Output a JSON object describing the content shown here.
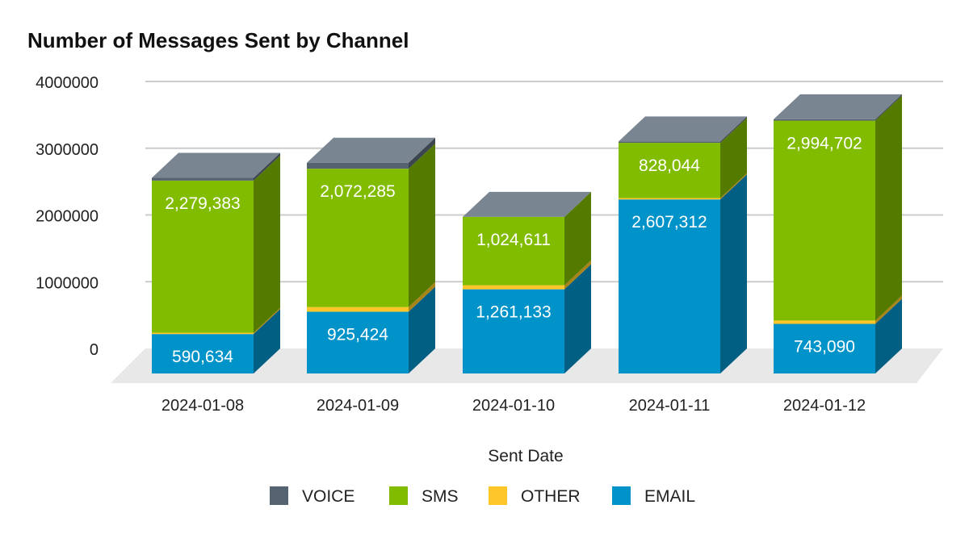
{
  "chart_data": {
    "type": "bar",
    "stacked": true,
    "three_d": true,
    "title": "Number of Messages Sent by Channel",
    "xlabel": "Sent Date",
    "ylabel": "",
    "ylim": [
      0,
      4000000
    ],
    "yticks": [
      "0",
      "1000000",
      "2000000",
      "3000000",
      "4000000"
    ],
    "grid": true,
    "legend_position": "bottom",
    "categories": [
      "2024-01-08",
      "2024-01-09",
      "2024-01-10",
      "2024-01-11",
      "2024-01-12"
    ],
    "series": [
      {
        "name": "EMAIL",
        "color": "#0093C9",
        "side_color": "#005F82",
        "values": [
          590634,
          925424,
          1261133,
          2607312,
          743090
        ],
        "labels": [
          "590,634",
          "925,424",
          "1,261,133",
          "2,607,312",
          "743,090"
        ]
      },
      {
        "name": "OTHER",
        "color": "#FFC629",
        "side_color": "#A88318",
        "values": [
          20000,
          70000,
          60000,
          20000,
          50000
        ],
        "labels": [
          "",
          "",
          "",
          "",
          ""
        ]
      },
      {
        "name": "SMS",
        "color": "#82BC00",
        "side_color": "#547B00",
        "values": [
          2279383,
          2072285,
          1024611,
          828044,
          2994702
        ],
        "labels": [
          "2,279,383",
          "2,072,285",
          "1,024,611",
          "828,044",
          "2,994,702"
        ]
      },
      {
        "name": "VOICE",
        "color": "#55626F",
        "side_color": "#3D4650",
        "values": [
          40000,
          90000,
          0,
          20000,
          20000
        ],
        "labels": [
          "",
          "",
          "",
          "",
          ""
        ]
      }
    ],
    "legend_order": [
      "VOICE",
      "SMS",
      "OTHER",
      "EMAIL"
    ],
    "top_face_color": "#7A8592",
    "floor_color": "#E8E8E8"
  }
}
